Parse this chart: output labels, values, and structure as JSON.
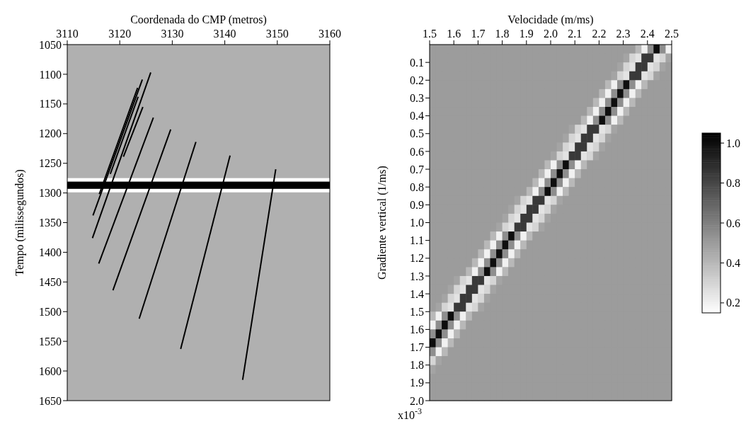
{
  "chart_data": [
    {
      "type": "line",
      "xlabel": "Coordenada do CMP (metros)",
      "ylabel": "Tempo (milissegundos)",
      "xlim": [
        3110,
        3160
      ],
      "xticks": [
        3110,
        3120,
        3130,
        3140,
        3150,
        3160
      ],
      "ylim": [
        1650,
        1050
      ],
      "yticks": [
        1050,
        1100,
        1150,
        1200,
        1250,
        1300,
        1350,
        1400,
        1450,
        1500,
        1550,
        1600,
        1650
      ],
      "marker": "none",
      "line_style": "solid",
      "bands": [
        {
          "axis": "y",
          "from": 1275,
          "to": 1281,
          "color": "#ffffff"
        },
        {
          "axis": "y",
          "from": 1293,
          "to": 1299,
          "color": "#ffffff"
        },
        {
          "axis": "y",
          "from": 1281,
          "to": 1293,
          "color": "#000000"
        }
      ],
      "series": [
        {
          "color": "#000000",
          "x": [
            3123.4,
            3116.1
          ],
          "values": [
            1123,
            1302
          ]
        },
        {
          "color": "#000000",
          "x": [
            3123.5,
            3118.2
          ],
          "values": [
            1138,
            1268
          ]
        },
        {
          "color": "#000000",
          "x": [
            3124.3,
            3114.9
          ],
          "values": [
            1109,
            1338
          ]
        },
        {
          "color": "#000000",
          "x": [
            3124.4,
            3120.7
          ],
          "values": [
            1155,
            1239
          ]
        },
        {
          "color": "#000000",
          "x": [
            3125.9,
            3114.8
          ],
          "values": [
            1097,
            1376
          ]
        },
        {
          "color": "#000000",
          "x": [
            3126.4,
            3116.0
          ],
          "values": [
            1173,
            1419
          ]
        },
        {
          "color": "#000000",
          "x": [
            3129.7,
            3118.7
          ],
          "values": [
            1193,
            1464
          ]
        },
        {
          "color": "#000000",
          "x": [
            3134.5,
            3123.7
          ],
          "values": [
            1214,
            1512
          ]
        },
        {
          "color": "#000000",
          "x": [
            3141.0,
            3131.6
          ],
          "values": [
            1237,
            1563
          ]
        },
        {
          "color": "#000000",
          "x": [
            3149.7,
            3143.4
          ],
          "values": [
            1260,
            1615
          ]
        }
      ]
    },
    {
      "type": "heatmap",
      "xlabel": "Velocidade (m/ms)",
      "ylabel": "Gradiente vertical (1/ms)",
      "annotations": [
        "x10$^{-3}$"
      ],
      "xlim": [
        1.5,
        2.5
      ],
      "xticks": [
        1.5,
        1.6,
        1.7,
        1.8,
        1.9,
        {
          "value": 2,
          "label": "2.0"
        },
        2.1,
        2.2,
        2.3,
        2.4,
        2.5
      ],
      "ylim": [
        2,
        0
      ],
      "yticks": [
        0.1,
        0.2,
        0.3,
        0.4,
        0.5,
        0.6,
        0.7,
        0.8,
        0.9,
        {
          "value": 1,
          "label": "1.0"
        },
        1.1,
        1.2,
        1.3,
        1.4,
        1.5,
        1.6,
        1.7,
        1.8,
        1.9,
        {
          "value": 2,
          "label": "2.0"
        }
      ],
      "clim": [
        0.15,
        1.05
      ],
      "cticks": [
        0.2,
        0.4,
        0.6,
        0.8,
        {
          "value": 1,
          "label": "1.0"
        }
      ],
      "cells": [
        [
          0.5,
          0.5,
          0.5,
          0.5,
          0.5,
          0.5,
          0.5,
          0.5,
          0.5,
          0.5,
          0.5,
          0.5,
          0.5,
          0.5,
          0.5,
          0.5,
          0.5,
          0.5,
          0.5,
          0.5,
          0.5,
          0.5,
          0.5,
          0.5,
          0.5,
          0.5,
          0.5,
          0.5,
          0.5,
          0.5,
          0.5,
          0.5,
          0.5,
          0.5,
          0.4,
          0.2,
          0.55,
          1,
          0.55,
          0.2
        ],
        [
          0.5,
          0.5,
          0.5,
          0.5,
          0.5,
          0.5,
          0.5,
          0.5,
          0.5,
          0.5,
          0.5,
          0.5,
          0.5,
          0.5,
          0.5,
          0.5,
          0.5,
          0.5,
          0.5,
          0.5,
          0.5,
          0.5,
          0.5,
          0.5,
          0.5,
          0.5,
          0.5,
          0.5,
          0.5,
          0.5,
          0.5,
          0.5,
          0.47,
          0.3,
          0.25,
          0.85,
          0.85,
          0.25,
          0.3,
          0.47
        ],
        [
          0.5,
          0.5,
          0.5,
          0.5,
          0.5,
          0.5,
          0.5,
          0.5,
          0.5,
          0.5,
          0.5,
          0.5,
          0.5,
          0.5,
          0.5,
          0.5,
          0.5,
          0.5,
          0.5,
          0.5,
          0.5,
          0.5,
          0.5,
          0.5,
          0.5,
          0.5,
          0.5,
          0.5,
          0.5,
          0.5,
          0.5,
          0.47,
          0.3,
          0.25,
          0.85,
          0.85,
          0.25,
          0.3,
          0.47,
          0.5
        ],
        [
          0.5,
          0.5,
          0.5,
          0.5,
          0.5,
          0.5,
          0.5,
          0.5,
          0.5,
          0.5,
          0.5,
          0.5,
          0.5,
          0.5,
          0.5,
          0.5,
          0.5,
          0.5,
          0.5,
          0.5,
          0.5,
          0.5,
          0.5,
          0.5,
          0.5,
          0.5,
          0.5,
          0.5,
          0.5,
          0.5,
          0.47,
          0.3,
          0.25,
          0.85,
          0.85,
          0.25,
          0.3,
          0.47,
          0.5,
          0.5
        ],
        [
          0.5,
          0.5,
          0.5,
          0.5,
          0.5,
          0.5,
          0.5,
          0.5,
          0.5,
          0.5,
          0.5,
          0.5,
          0.5,
          0.5,
          0.5,
          0.5,
          0.5,
          0.5,
          0.5,
          0.5,
          0.5,
          0.5,
          0.5,
          0.5,
          0.5,
          0.5,
          0.5,
          0.5,
          0.5,
          0.4,
          0.2,
          0.55,
          1,
          0.55,
          0.2,
          0.4,
          0.5,
          0.5,
          0.5,
          0.5
        ],
        [
          0.5,
          0.5,
          0.5,
          0.5,
          0.5,
          0.5,
          0.5,
          0.5,
          0.5,
          0.5,
          0.5,
          0.5,
          0.5,
          0.5,
          0.5,
          0.5,
          0.5,
          0.5,
          0.5,
          0.5,
          0.5,
          0.5,
          0.5,
          0.5,
          0.5,
          0.5,
          0.5,
          0.5,
          0.4,
          0.2,
          0.55,
          1,
          0.55,
          0.2,
          0.4,
          0.5,
          0.5,
          0.5,
          0.5,
          0.5
        ],
        [
          0.5,
          0.5,
          0.5,
          0.5,
          0.5,
          0.5,
          0.5,
          0.5,
          0.5,
          0.5,
          0.5,
          0.5,
          0.5,
          0.5,
          0.5,
          0.5,
          0.5,
          0.5,
          0.5,
          0.5,
          0.5,
          0.5,
          0.5,
          0.5,
          0.5,
          0.5,
          0.5,
          0.4,
          0.2,
          0.55,
          1,
          0.55,
          0.2,
          0.4,
          0.5,
          0.5,
          0.5,
          0.5,
          0.5,
          0.5
        ],
        [
          0.5,
          0.5,
          0.5,
          0.5,
          0.5,
          0.5,
          0.5,
          0.5,
          0.5,
          0.5,
          0.5,
          0.5,
          0.5,
          0.5,
          0.5,
          0.5,
          0.5,
          0.5,
          0.5,
          0.5,
          0.5,
          0.5,
          0.5,
          0.5,
          0.5,
          0.5,
          0.4,
          0.2,
          0.55,
          1,
          0.55,
          0.2,
          0.4,
          0.5,
          0.5,
          0.5,
          0.5,
          0.5,
          0.5,
          0.5
        ],
        [
          0.5,
          0.5,
          0.5,
          0.5,
          0.5,
          0.5,
          0.5,
          0.5,
          0.5,
          0.5,
          0.5,
          0.5,
          0.5,
          0.5,
          0.5,
          0.5,
          0.5,
          0.5,
          0.5,
          0.5,
          0.5,
          0.5,
          0.5,
          0.5,
          0.5,
          0.4,
          0.2,
          0.55,
          1,
          0.55,
          0.2,
          0.4,
          0.5,
          0.5,
          0.5,
          0.5,
          0.5,
          0.5,
          0.5,
          0.5
        ],
        [
          0.5,
          0.5,
          0.5,
          0.5,
          0.5,
          0.5,
          0.5,
          0.5,
          0.5,
          0.5,
          0.5,
          0.5,
          0.5,
          0.5,
          0.5,
          0.5,
          0.5,
          0.5,
          0.5,
          0.5,
          0.5,
          0.5,
          0.5,
          0.47,
          0.3,
          0.25,
          0.85,
          0.85,
          0.25,
          0.3,
          0.47,
          0.5,
          0.5,
          0.5,
          0.5,
          0.5,
          0.5,
          0.5,
          0.5,
          0.5
        ],
        [
          0.5,
          0.5,
          0.5,
          0.5,
          0.5,
          0.5,
          0.5,
          0.5,
          0.5,
          0.5,
          0.5,
          0.5,
          0.5,
          0.5,
          0.5,
          0.5,
          0.5,
          0.5,
          0.5,
          0.5,
          0.5,
          0.5,
          0.47,
          0.3,
          0.25,
          0.85,
          0.85,
          0.25,
          0.3,
          0.47,
          0.5,
          0.5,
          0.5,
          0.5,
          0.5,
          0.5,
          0.5,
          0.5,
          0.5,
          0.5
        ],
        [
          0.5,
          0.5,
          0.5,
          0.5,
          0.5,
          0.5,
          0.5,
          0.5,
          0.5,
          0.5,
          0.5,
          0.5,
          0.5,
          0.5,
          0.5,
          0.5,
          0.5,
          0.5,
          0.5,
          0.5,
          0.5,
          0.47,
          0.3,
          0.25,
          0.85,
          0.85,
          0.25,
          0.3,
          0.47,
          0.5,
          0.5,
          0.5,
          0.5,
          0.5,
          0.5,
          0.5,
          0.5,
          0.5,
          0.5,
          0.5
        ],
        [
          0.5,
          0.5,
          0.5,
          0.5,
          0.5,
          0.5,
          0.5,
          0.5,
          0.5,
          0.5,
          0.5,
          0.5,
          0.5,
          0.5,
          0.5,
          0.5,
          0.5,
          0.5,
          0.5,
          0.5,
          0.47,
          0.3,
          0.25,
          0.85,
          0.85,
          0.25,
          0.3,
          0.47,
          0.5,
          0.5,
          0.5,
          0.5,
          0.5,
          0.5,
          0.5,
          0.5,
          0.5,
          0.5,
          0.5,
          0.5
        ],
        [
          0.5,
          0.5,
          0.5,
          0.5,
          0.5,
          0.5,
          0.5,
          0.5,
          0.5,
          0.5,
          0.5,
          0.5,
          0.5,
          0.5,
          0.5,
          0.5,
          0.5,
          0.5,
          0.5,
          0.4,
          0.2,
          0.55,
          1,
          0.55,
          0.2,
          0.4,
          0.5,
          0.5,
          0.5,
          0.5,
          0.5,
          0.5,
          0.5,
          0.5,
          0.5,
          0.5,
          0.5,
          0.5,
          0.5,
          0.5
        ],
        [
          0.5,
          0.5,
          0.5,
          0.5,
          0.5,
          0.5,
          0.5,
          0.5,
          0.5,
          0.5,
          0.5,
          0.5,
          0.5,
          0.5,
          0.5,
          0.5,
          0.5,
          0.5,
          0.4,
          0.2,
          0.55,
          1,
          0.55,
          0.2,
          0.4,
          0.5,
          0.5,
          0.5,
          0.5,
          0.5,
          0.5,
          0.5,
          0.5,
          0.5,
          0.5,
          0.5,
          0.5,
          0.5,
          0.5,
          0.5
        ],
        [
          0.5,
          0.5,
          0.5,
          0.5,
          0.5,
          0.5,
          0.5,
          0.5,
          0.5,
          0.5,
          0.5,
          0.5,
          0.5,
          0.5,
          0.5,
          0.5,
          0.5,
          0.4,
          0.2,
          0.55,
          1,
          0.55,
          0.2,
          0.4,
          0.5,
          0.5,
          0.5,
          0.5,
          0.5,
          0.5,
          0.5,
          0.5,
          0.5,
          0.5,
          0.5,
          0.5,
          0.5,
          0.5,
          0.5,
          0.5
        ],
        [
          0.5,
          0.5,
          0.5,
          0.5,
          0.5,
          0.5,
          0.5,
          0.5,
          0.5,
          0.5,
          0.5,
          0.5,
          0.5,
          0.5,
          0.5,
          0.5,
          0.4,
          0.2,
          0.55,
          1,
          0.55,
          0.2,
          0.4,
          0.5,
          0.5,
          0.5,
          0.5,
          0.5,
          0.5,
          0.5,
          0.5,
          0.5,
          0.5,
          0.5,
          0.5,
          0.5,
          0.5,
          0.5,
          0.5,
          0.5
        ],
        [
          0.5,
          0.5,
          0.5,
          0.5,
          0.5,
          0.5,
          0.5,
          0.5,
          0.5,
          0.5,
          0.5,
          0.5,
          0.5,
          0.5,
          0.47,
          0.3,
          0.25,
          0.85,
          0.85,
          0.25,
          0.3,
          0.47,
          0.5,
          0.5,
          0.5,
          0.5,
          0.5,
          0.5,
          0.5,
          0.5,
          0.5,
          0.5,
          0.5,
          0.5,
          0.5,
          0.5,
          0.5,
          0.5,
          0.5,
          0.5
        ],
        [
          0.5,
          0.5,
          0.5,
          0.5,
          0.5,
          0.5,
          0.5,
          0.5,
          0.5,
          0.5,
          0.5,
          0.5,
          0.5,
          0.47,
          0.3,
          0.25,
          0.85,
          0.85,
          0.25,
          0.3,
          0.47,
          0.5,
          0.5,
          0.5,
          0.5,
          0.5,
          0.5,
          0.5,
          0.5,
          0.5,
          0.5,
          0.5,
          0.5,
          0.5,
          0.5,
          0.5,
          0.5,
          0.5,
          0.5,
          0.5
        ],
        [
          0.5,
          0.5,
          0.5,
          0.5,
          0.5,
          0.5,
          0.5,
          0.5,
          0.5,
          0.5,
          0.5,
          0.5,
          0.47,
          0.3,
          0.25,
          0.85,
          0.85,
          0.25,
          0.3,
          0.47,
          0.5,
          0.5,
          0.5,
          0.5,
          0.5,
          0.5,
          0.5,
          0.5,
          0.5,
          0.5,
          0.5,
          0.5,
          0.5,
          0.5,
          0.5,
          0.5,
          0.5,
          0.5,
          0.5,
          0.5
        ],
        [
          0.5,
          0.5,
          0.5,
          0.5,
          0.5,
          0.5,
          0.5,
          0.5,
          0.5,
          0.5,
          0.5,
          0.47,
          0.3,
          0.25,
          0.85,
          0.85,
          0.25,
          0.3,
          0.47,
          0.5,
          0.5,
          0.5,
          0.5,
          0.5,
          0.5,
          0.5,
          0.5,
          0.5,
          0.5,
          0.5,
          0.5,
          0.5,
          0.5,
          0.5,
          0.5,
          0.5,
          0.5,
          0.5,
          0.5,
          0.5
        ],
        [
          0.5,
          0.5,
          0.5,
          0.5,
          0.5,
          0.5,
          0.5,
          0.5,
          0.5,
          0.5,
          0.4,
          0.2,
          0.55,
          1,
          0.55,
          0.2,
          0.4,
          0.5,
          0.5,
          0.5,
          0.5,
          0.5,
          0.5,
          0.5,
          0.5,
          0.5,
          0.5,
          0.5,
          0.5,
          0.5,
          0.5,
          0.5,
          0.5,
          0.5,
          0.5,
          0.5,
          0.5,
          0.5,
          0.5,
          0.5
        ],
        [
          0.5,
          0.5,
          0.5,
          0.5,
          0.5,
          0.5,
          0.5,
          0.5,
          0.5,
          0.4,
          0.2,
          0.55,
          1,
          0.55,
          0.2,
          0.4,
          0.5,
          0.5,
          0.5,
          0.5,
          0.5,
          0.5,
          0.5,
          0.5,
          0.5,
          0.5,
          0.5,
          0.5,
          0.5,
          0.5,
          0.5,
          0.5,
          0.5,
          0.5,
          0.5,
          0.5,
          0.5,
          0.5,
          0.5,
          0.5
        ],
        [
          0.5,
          0.5,
          0.5,
          0.5,
          0.5,
          0.5,
          0.5,
          0.5,
          0.4,
          0.2,
          0.55,
          1,
          0.55,
          0.2,
          0.4,
          0.5,
          0.5,
          0.5,
          0.5,
          0.5,
          0.5,
          0.5,
          0.5,
          0.5,
          0.5,
          0.5,
          0.5,
          0.5,
          0.5,
          0.5,
          0.5,
          0.5,
          0.5,
          0.5,
          0.5,
          0.5,
          0.5,
          0.5,
          0.5,
          0.5
        ],
        [
          0.5,
          0.5,
          0.5,
          0.5,
          0.5,
          0.5,
          0.5,
          0.4,
          0.2,
          0.55,
          1,
          0.55,
          0.2,
          0.4,
          0.5,
          0.5,
          0.5,
          0.5,
          0.5,
          0.5,
          0.5,
          0.5,
          0.5,
          0.5,
          0.5,
          0.5,
          0.5,
          0.5,
          0.5,
          0.5,
          0.5,
          0.5,
          0.5,
          0.5,
          0.5,
          0.5,
          0.5,
          0.5,
          0.5,
          0.5
        ],
        [
          0.5,
          0.5,
          0.5,
          0.5,
          0.5,
          0.5,
          0.4,
          0.2,
          0.55,
          1,
          0.55,
          0.2,
          0.4,
          0.5,
          0.5,
          0.5,
          0.5,
          0.5,
          0.5,
          0.5,
          0.5,
          0.5,
          0.5,
          0.5,
          0.5,
          0.5,
          0.5,
          0.5,
          0.5,
          0.5,
          0.5,
          0.5,
          0.5,
          0.5,
          0.5,
          0.5,
          0.5,
          0.5,
          0.5,
          0.5
        ],
        [
          0.5,
          0.5,
          0.5,
          0.5,
          0.47,
          0.3,
          0.25,
          0.85,
          0.85,
          0.25,
          0.3,
          0.47,
          0.5,
          0.5,
          0.5,
          0.5,
          0.5,
          0.5,
          0.5,
          0.5,
          0.5,
          0.5,
          0.5,
          0.5,
          0.5,
          0.5,
          0.5,
          0.5,
          0.5,
          0.5,
          0.5,
          0.5,
          0.5,
          0.5,
          0.5,
          0.5,
          0.5,
          0.5,
          0.5,
          0.5
        ],
        [
          0.5,
          0.5,
          0.5,
          0.47,
          0.3,
          0.25,
          0.85,
          0.85,
          0.25,
          0.3,
          0.47,
          0.5,
          0.5,
          0.5,
          0.5,
          0.5,
          0.5,
          0.5,
          0.5,
          0.5,
          0.5,
          0.5,
          0.5,
          0.5,
          0.5,
          0.5,
          0.5,
          0.5,
          0.5,
          0.5,
          0.5,
          0.5,
          0.5,
          0.5,
          0.5,
          0.5,
          0.5,
          0.5,
          0.5,
          0.5
        ],
        [
          0.5,
          0.5,
          0.47,
          0.3,
          0.25,
          0.85,
          0.85,
          0.25,
          0.3,
          0.47,
          0.5,
          0.5,
          0.5,
          0.5,
          0.5,
          0.5,
          0.5,
          0.5,
          0.5,
          0.5,
          0.5,
          0.5,
          0.5,
          0.5,
          0.5,
          0.5,
          0.5,
          0.5,
          0.5,
          0.5,
          0.5,
          0.5,
          0.5,
          0.5,
          0.5,
          0.5,
          0.5,
          0.5,
          0.5,
          0.5
        ],
        [
          0.5,
          0.47,
          0.3,
          0.25,
          0.85,
          0.85,
          0.25,
          0.3,
          0.47,
          0.5,
          0.5,
          0.5,
          0.5,
          0.5,
          0.5,
          0.5,
          0.5,
          0.5,
          0.5,
          0.5,
          0.5,
          0.5,
          0.5,
          0.5,
          0.5,
          0.5,
          0.5,
          0.5,
          0.5,
          0.5,
          0.5,
          0.5,
          0.5,
          0.5,
          0.5,
          0.5,
          0.5,
          0.5,
          0.5,
          0.5
        ],
        [
          0.4,
          0.2,
          0.55,
          1,
          0.55,
          0.2,
          0.4,
          0.5,
          0.5,
          0.5,
          0.5,
          0.5,
          0.5,
          0.5,
          0.5,
          0.5,
          0.5,
          0.5,
          0.5,
          0.5,
          0.5,
          0.5,
          0.5,
          0.5,
          0.5,
          0.5,
          0.5,
          0.5,
          0.5,
          0.5,
          0.5,
          0.5,
          0.5,
          0.5,
          0.5,
          0.5,
          0.5,
          0.5,
          0.5,
          0.5
        ],
        [
          0.2,
          0.55,
          1,
          0.55,
          0.2,
          0.4,
          0.5,
          0.5,
          0.5,
          0.5,
          0.5,
          0.5,
          0.5,
          0.5,
          0.5,
          0.5,
          0.5,
          0.5,
          0.5,
          0.5,
          0.5,
          0.5,
          0.5,
          0.5,
          0.5,
          0.5,
          0.5,
          0.5,
          0.5,
          0.5,
          0.5,
          0.5,
          0.5,
          0.5,
          0.5,
          0.5,
          0.5,
          0.5,
          0.5,
          0.5
        ],
        [
          0.55,
          1,
          0.55,
          0.2,
          0.4,
          0.5,
          0.5,
          0.5,
          0.5,
          0.5,
          0.5,
          0.5,
          0.5,
          0.5,
          0.5,
          0.5,
          0.5,
          0.5,
          0.5,
          0.5,
          0.5,
          0.5,
          0.5,
          0.5,
          0.5,
          0.5,
          0.5,
          0.5,
          0.5,
          0.5,
          0.5,
          0.5,
          0.5,
          0.5,
          0.5,
          0.5,
          0.5,
          0.5,
          0.5,
          0.5
        ],
        [
          1,
          0.55,
          0.2,
          0.4,
          0.5,
          0.5,
          0.5,
          0.5,
          0.5,
          0.5,
          0.5,
          0.5,
          0.5,
          0.5,
          0.5,
          0.5,
          0.5,
          0.5,
          0.5,
          0.5,
          0.5,
          0.5,
          0.5,
          0.5,
          0.5,
          0.5,
          0.5,
          0.5,
          0.5,
          0.5,
          0.5,
          0.5,
          0.5,
          0.5,
          0.5,
          0.5,
          0.5,
          0.5,
          0.5,
          0.5
        ],
        [
          0.55,
          0.2,
          0.4,
          0.5,
          0.5,
          0.5,
          0.5,
          0.5,
          0.5,
          0.5,
          0.5,
          0.5,
          0.5,
          0.5,
          0.5,
          0.5,
          0.5,
          0.5,
          0.5,
          0.5,
          0.5,
          0.5,
          0.5,
          0.5,
          0.5,
          0.5,
          0.5,
          0.5,
          0.5,
          0.5,
          0.5,
          0.5,
          0.5,
          0.5,
          0.5,
          0.5,
          0.5,
          0.5,
          0.5,
          0.5
        ],
        [
          0.3,
          0.47,
          0.5,
          0.5,
          0.5,
          0.5,
          0.5,
          0.5,
          0.5,
          0.5,
          0.5,
          0.5,
          0.5,
          0.5,
          0.5,
          0.5,
          0.5,
          0.5,
          0.5,
          0.5,
          0.5,
          0.5,
          0.5,
          0.5,
          0.5,
          0.5,
          0.5,
          0.5,
          0.5,
          0.5,
          0.5,
          0.5,
          0.5,
          0.5,
          0.5,
          0.5,
          0.5,
          0.5,
          0.5,
          0.5
        ],
        [
          0.47,
          0.5,
          0.5,
          0.5,
          0.5,
          0.5,
          0.5,
          0.5,
          0.5,
          0.5,
          0.5,
          0.5,
          0.5,
          0.5,
          0.5,
          0.5,
          0.5,
          0.5,
          0.5,
          0.5,
          0.5,
          0.5,
          0.5,
          0.5,
          0.5,
          0.5,
          0.5,
          0.5,
          0.5,
          0.5,
          0.5,
          0.5,
          0.5,
          0.5,
          0.5,
          0.5,
          0.5,
          0.5,
          0.5,
          0.5
        ],
        [
          0.5,
          0.5,
          0.5,
          0.5,
          0.5,
          0.5,
          0.5,
          0.5,
          0.5,
          0.5,
          0.5,
          0.5,
          0.5,
          0.5,
          0.5,
          0.5,
          0.5,
          0.5,
          0.5,
          0.5,
          0.5,
          0.5,
          0.5,
          0.5,
          0.5,
          0.5,
          0.5,
          0.5,
          0.5,
          0.5,
          0.5,
          0.5,
          0.5,
          0.5,
          0.5,
          0.5,
          0.5,
          0.5,
          0.5,
          0.5
        ],
        [
          0.5,
          0.5,
          0.5,
          0.5,
          0.5,
          0.5,
          0.5,
          0.5,
          0.5,
          0.5,
          0.5,
          0.5,
          0.5,
          0.5,
          0.5,
          0.5,
          0.5,
          0.5,
          0.5,
          0.5,
          0.5,
          0.5,
          0.5,
          0.5,
          0.5,
          0.5,
          0.5,
          0.5,
          0.5,
          0.5,
          0.5,
          0.5,
          0.5,
          0.5,
          0.5,
          0.5,
          0.5,
          0.5,
          0.5,
          0.5
        ],
        [
          0.5,
          0.5,
          0.5,
          0.5,
          0.5,
          0.5,
          0.5,
          0.5,
          0.5,
          0.5,
          0.5,
          0.5,
          0.5,
          0.5,
          0.5,
          0.5,
          0.5,
          0.5,
          0.5,
          0.5,
          0.5,
          0.5,
          0.5,
          0.5,
          0.5,
          0.5,
          0.5,
          0.5,
          0.5,
          0.5,
          0.5,
          0.5,
          0.5,
          0.5,
          0.5,
          0.5,
          0.5,
          0.5,
          0.5,
          0.5
        ]
      ]
    }
  ]
}
